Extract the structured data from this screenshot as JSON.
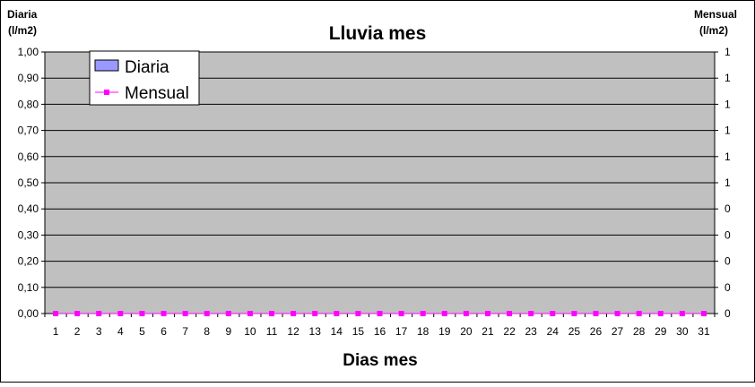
{
  "chart_data": {
    "type": "bar",
    "title": "Lluvia mes",
    "xlabel": "Dias mes",
    "ylabel_left": [
      "Diaria",
      "(l/m2)"
    ],
    "ylabel_right": [
      "Mensual",
      "(l/m2)"
    ],
    "categories": [
      "1",
      "2",
      "3",
      "4",
      "5",
      "6",
      "7",
      "8",
      "9",
      "10",
      "11",
      "12",
      "13",
      "14",
      "15",
      "16",
      "17",
      "18",
      "19",
      "20",
      "21",
      "22",
      "23",
      "24",
      "25",
      "26",
      "27",
      "28",
      "29",
      "30",
      "31"
    ],
    "ylim": [
      0,
      1
    ],
    "y_ticks_left": [
      "0,00",
      "0,10",
      "0,20",
      "0,30",
      "0,40",
      "0,50",
      "0,60",
      "0,70",
      "0,80",
      "0,90",
      "1,00"
    ],
    "y_ticks_right": [
      "0",
      "0",
      "0",
      "0",
      "0",
      "1",
      "1",
      "1",
      "1",
      "1",
      "1"
    ],
    "grid": true,
    "legend_placement": "top-left",
    "plot_background": "#c0c0c0",
    "series": [
      {
        "name": "Diaria",
        "type": "bar",
        "color": "#9999ff",
        "values": [
          0,
          0,
          0,
          0,
          0,
          0,
          0,
          0,
          0,
          0,
          0,
          0,
          0,
          0,
          0,
          0,
          0,
          0,
          0,
          0,
          0,
          0,
          0,
          0,
          0,
          0,
          0,
          0,
          0,
          0,
          0
        ]
      },
      {
        "name": "Mensual",
        "type": "line",
        "axis": "right",
        "color": "#ff00ff",
        "values": [
          0,
          0,
          0,
          0,
          0,
          0,
          0,
          0,
          0,
          0,
          0,
          0,
          0,
          0,
          0,
          0,
          0,
          0,
          0,
          0,
          0,
          0,
          0,
          0,
          0,
          0,
          0,
          0,
          0,
          0,
          0
        ]
      }
    ]
  }
}
